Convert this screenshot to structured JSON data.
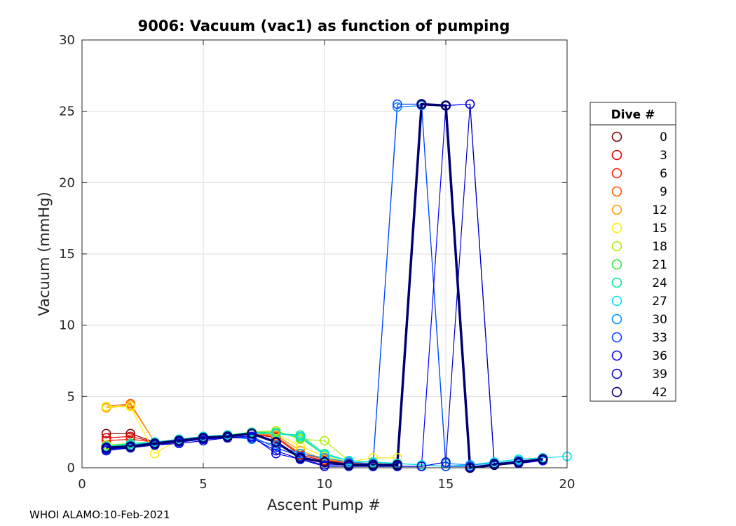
{
  "chart_data": {
    "type": "line",
    "title": "9006: Vacuum (vac1) as function of pumping",
    "xlabel": "Ascent Pump #",
    "ylabel": "Vacuum (mmHg)",
    "xlim": [
      0,
      20
    ],
    "ylim": [
      0,
      30
    ],
    "xticks": [
      0,
      5,
      10,
      15,
      20
    ],
    "yticks": [
      0,
      5,
      10,
      15,
      20,
      25,
      30
    ],
    "grid": true,
    "marker": "circle",
    "legend": {
      "title": "Dive #",
      "placement": "right"
    },
    "series": [
      {
        "name": "0",
        "color": "#800000",
        "x": [
          1,
          2,
          3,
          4,
          5,
          6,
          7,
          8,
          9,
          10,
          11,
          12,
          13
        ],
        "y": [
          2.4,
          2.4,
          1.8,
          1.9,
          2.1,
          2.2,
          2.4,
          2.1,
          0.9,
          0.5,
          0.3,
          0.3,
          0.2
        ]
      },
      {
        "name": "3",
        "color": "#e60000",
        "x": [
          1,
          2,
          3,
          4,
          5,
          6,
          7,
          8,
          9,
          10,
          11,
          12,
          13
        ],
        "y": [
          2.1,
          2.2,
          1.8,
          2.0,
          2.1,
          2.2,
          2.4,
          2.1,
          0.9,
          0.5,
          0.3,
          0.3,
          0.2
        ]
      },
      {
        "name": "6",
        "color": "#ff1a00",
        "x": [
          1,
          2,
          3,
          4,
          5,
          6,
          7,
          8,
          9,
          10,
          11,
          12,
          13
        ],
        "y": [
          1.9,
          2.0,
          1.8,
          2.0,
          2.1,
          2.2,
          2.4,
          2.2,
          1.0,
          0.6,
          0.3,
          0.3,
          0.2
        ]
      },
      {
        "name": "9",
        "color": "#ff5500",
        "x": [
          1,
          2,
          3,
          4,
          5,
          6,
          7,
          8,
          9,
          10,
          11,
          12,
          13
        ],
        "y": [
          4.3,
          4.5,
          1.8,
          2.0,
          2.1,
          2.2,
          2.4,
          2.2,
          1.0,
          0.6,
          0.3,
          0.3,
          0.2
        ]
      },
      {
        "name": "12",
        "color": "#ff9900",
        "x": [
          1,
          2,
          3,
          4,
          5,
          6,
          7,
          8,
          9,
          10,
          11,
          12,
          13
        ],
        "y": [
          4.2,
          4.4,
          1.8,
          2.0,
          2.1,
          2.3,
          2.4,
          2.3,
          1.2,
          0.6,
          0.4,
          0.3,
          0.2
        ]
      },
      {
        "name": "15",
        "color": "#ffee00",
        "x": [
          1,
          2,
          3,
          4,
          5,
          6,
          7,
          8,
          9,
          10,
          11,
          12,
          13
        ],
        "y": [
          4.3,
          4.3,
          1.0,
          2.0,
          2.2,
          2.3,
          2.5,
          2.4,
          1.5,
          0.8,
          0.4,
          0.7,
          0.7
        ]
      },
      {
        "name": "18",
        "color": "#a8f000",
        "x": [
          1,
          2,
          3,
          4,
          5,
          6,
          7,
          8,
          9,
          10,
          11,
          12,
          13
        ],
        "y": [
          1.6,
          1.7,
          1.8,
          2.0,
          2.2,
          2.3,
          2.5,
          2.6,
          2.0,
          1.9,
          0.5,
          0.4,
          0.3
        ]
      },
      {
        "name": "21",
        "color": "#33e833",
        "x": [
          1,
          2,
          3,
          4,
          5,
          6,
          7,
          8,
          9,
          10,
          11,
          12,
          13
        ],
        "y": [
          1.5,
          1.7,
          1.8,
          2.0,
          2.2,
          2.3,
          2.5,
          2.5,
          2.1,
          0.9,
          0.5,
          0.4,
          0.3
        ]
      },
      {
        "name": "24",
        "color": "#00e8a0",
        "x": [
          1,
          2,
          3,
          4,
          5,
          6,
          7,
          8,
          9,
          10,
          11,
          12,
          13,
          14,
          15,
          16,
          17,
          18,
          19
        ],
        "y": [
          1.5,
          1.7,
          1.8,
          2.0,
          2.2,
          2.3,
          2.5,
          2.4,
          2.3,
          1.0,
          0.5,
          0.4,
          0.3,
          0.2,
          0.1,
          0.2,
          0.4,
          0.6,
          0.7
        ]
      },
      {
        "name": "27",
        "color": "#00e0f0",
        "x": [
          1,
          2,
          3,
          4,
          5,
          6,
          7,
          8,
          9,
          10,
          11,
          12,
          13,
          14,
          15,
          16,
          17,
          18,
          19,
          20
        ],
        "y": [
          1.5,
          1.6,
          1.8,
          2.0,
          2.2,
          2.3,
          2.4,
          2.4,
          2.2,
          0.9,
          0.5,
          0.4,
          0.3,
          0.2,
          0.1,
          0.2,
          0.4,
          0.6,
          0.7,
          0.8
        ]
      },
      {
        "name": "30",
        "color": "#0090ff",
        "x": [
          1,
          2,
          3,
          4,
          5,
          6,
          7,
          8,
          9,
          10,
          11,
          12,
          13,
          14,
          15,
          16,
          17,
          18,
          19
        ],
        "y": [
          1.4,
          1.5,
          1.7,
          1.9,
          2.1,
          2.2,
          2.0,
          1.6,
          1.0,
          0.7,
          0.4,
          0.3,
          25.3,
          25.4,
          0.3,
          0.2,
          0.3,
          0.5,
          0.6
        ]
      },
      {
        "name": "33",
        "color": "#0040ff",
        "x": [
          1,
          2,
          3,
          4,
          5,
          6,
          7,
          8,
          9,
          10,
          11,
          12,
          13,
          14,
          15,
          16,
          17,
          18,
          19
        ],
        "y": [
          1.3,
          1.5,
          1.7,
          1.8,
          2.0,
          2.2,
          2.2,
          1.4,
          0.8,
          0.4,
          0.3,
          0.2,
          25.5,
          25.5,
          0.1,
          0.1,
          0.2,
          0.4,
          0.6
        ]
      },
      {
        "name": "36",
        "color": "#0000ff",
        "x": [
          1,
          2,
          3,
          4,
          5,
          6,
          7,
          8,
          9,
          10,
          11,
          12,
          13,
          14,
          15,
          16,
          17,
          18,
          19
        ],
        "y": [
          1.3,
          1.4,
          1.6,
          1.8,
          2.0,
          2.1,
          2.2,
          1.0,
          0.6,
          0.2,
          0.2,
          0.1,
          0.1,
          0.1,
          25.4,
          25.5,
          0.2,
          0.3,
          0.5
        ]
      },
      {
        "name": "39",
        "color": "#0000c8",
        "x": [
          1,
          2,
          3,
          4,
          5,
          6,
          7,
          8,
          9,
          10,
          11,
          12,
          13,
          14,
          15,
          16,
          17,
          18,
          19
        ],
        "y": [
          1.2,
          1.4,
          1.6,
          1.7,
          1.9,
          2.1,
          2.1,
          1.2,
          0.6,
          0.1,
          0.1,
          0.1,
          0.1,
          0.1,
          0.4,
          25.5,
          0.3,
          0.4,
          0.6
        ]
      },
      {
        "name": "42",
        "color": "#000070",
        "x": [
          1,
          2,
          3,
          4,
          5,
          6,
          7,
          8,
          9,
          10,
          11,
          12,
          13,
          14,
          15,
          16,
          17,
          18,
          19
        ],
        "y": [
          1.4,
          1.5,
          1.7,
          1.9,
          2.1,
          2.2,
          2.4,
          1.8,
          0.7,
          0.4,
          0.2,
          0.2,
          0.2,
          25.5,
          25.4,
          0.0,
          0.2,
          0.4,
          0.6
        ]
      }
    ]
  },
  "footer": "WHOI ALAMO:10-Feb-2021"
}
